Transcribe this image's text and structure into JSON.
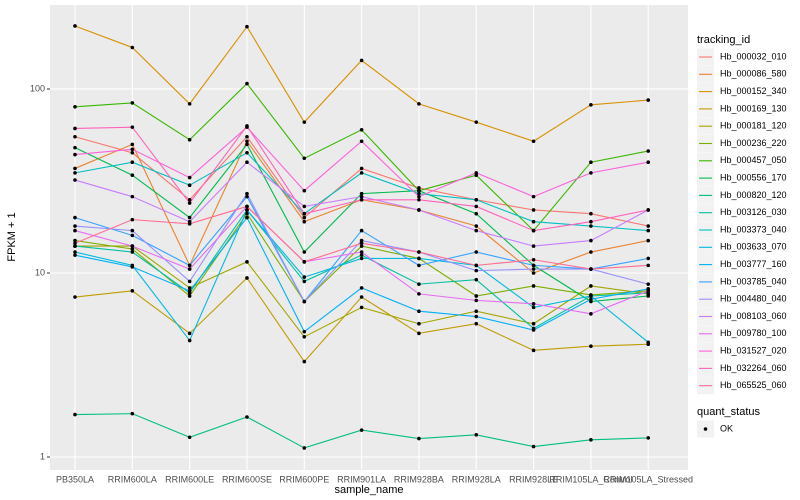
{
  "chart_data": {
    "type": "line",
    "x_label": "sample_name",
    "y_label": "FPKM + 1",
    "categories": [
      "PB350LA",
      "RRIM600LA",
      "RRIM600LE",
      "RRIM600SE",
      "RRIM600PE",
      "RRIM901LA",
      "RRIM928BA",
      "RRIM928LA",
      "RRIM928LE",
      "RRIM105LA_Control",
      "RRIM105LA_Stressed"
    ],
    "log_y": true,
    "ylim": [
      0.85,
      286
    ],
    "yticks": [
      1,
      10,
      100
    ],
    "grid": true,
    "legend_title": "tracking_id",
    "legend_position": "right",
    "shape_legend": {
      "title": "quant_status",
      "labels": [
        "OK"
      ]
    },
    "point_color": "#000000",
    "series": [
      {
        "name": "Hb_000032_010",
        "color": "#F8766D",
        "values": [
          55,
          45,
          25,
          55,
          20,
          37,
          29,
          25,
          22,
          21,
          18
        ]
      },
      {
        "name": "Hb_000086_580",
        "color": "#EA8331",
        "values": [
          37,
          50,
          11,
          52,
          19,
          25,
          22,
          18,
          10,
          13,
          15
        ]
      },
      {
        "name": "Hb_000152_340",
        "color": "#D89000",
        "values": [
          220,
          168,
          83,
          218,
          66,
          143,
          83,
          66,
          52,
          82,
          87
        ]
      },
      {
        "name": "Hb_000169_130",
        "color": "#C09B00",
        "values": [
          7.4,
          8,
          4.7,
          9.4,
          3.3,
          7.4,
          4.7,
          5.3,
          3.8,
          4,
          4.1
        ]
      },
      {
        "name": "Hb_000181_120",
        "color": "#A3A500",
        "values": [
          14,
          14,
          8.3,
          11.5,
          4.5,
          6.5,
          5.3,
          6.2,
          5.3,
          8.5,
          7.7
        ]
      },
      {
        "name": "Hb_000236_220",
        "color": "#7CAE00",
        "values": [
          15,
          13.5,
          7.5,
          21,
          7,
          14,
          12,
          7.5,
          8.5,
          7.6,
          8
        ]
      },
      {
        "name": "Hb_000457_050",
        "color": "#39B600",
        "values": [
          80,
          84,
          53,
          107,
          42,
          60,
          28,
          34,
          17,
          40,
          46
        ]
      },
      {
        "name": "Hb_000556_170",
        "color": "#00BB4E",
        "values": [
          48,
          34,
          20,
          50,
          13,
          27,
          28,
          21,
          11,
          7,
          7.5
        ]
      },
      {
        "name": "Hb_000820_120",
        "color": "#00BF7D",
        "values": [
          1.7,
          1.72,
          1.28,
          1.65,
          1.12,
          1.4,
          1.26,
          1.32,
          1.14,
          1.24,
          1.27
        ]
      },
      {
        "name": "Hb_003126_030",
        "color": "#00C1A3",
        "values": [
          14,
          13,
          7.8,
          22,
          9,
          12.5,
          8.7,
          9.2,
          5,
          7.5,
          7.8
        ]
      },
      {
        "name": "Hb_003373_040",
        "color": "#00BFC4",
        "values": [
          35,
          40,
          30,
          45,
          21,
          35,
          27,
          25,
          19,
          18,
          17
        ]
      },
      {
        "name": "Hb_003633_070",
        "color": "#00BAE0",
        "values": [
          13,
          11,
          4.3,
          22,
          9.5,
          12,
          12,
          11,
          6.5,
          7.5,
          4.2
        ]
      },
      {
        "name": "Hb_003777_160",
        "color": "#00B0F6",
        "values": [
          12.5,
          10.8,
          8,
          20,
          4.8,
          8.3,
          6.2,
          5.8,
          4.9,
          7.2,
          8.2
        ]
      },
      {
        "name": "Hb_003785_040",
        "color": "#35A2FF",
        "values": [
          20,
          16,
          11,
          26,
          7,
          17,
          11,
          13,
          11,
          10.5,
          12
        ]
      },
      {
        "name": "Hb_004480_040",
        "color": "#9590FF",
        "values": [
          18,
          17,
          9,
          27,
          7,
          15,
          13,
          10.3,
          10.5,
          10.5,
          8.7
        ]
      },
      {
        "name": "Hb_008103_060",
        "color": "#C77CFF",
        "values": [
          32,
          26,
          19,
          40,
          23,
          26,
          22,
          17,
          14,
          15,
          22
        ]
      },
      {
        "name": "Hb_009780_100",
        "color": "#E76BF3",
        "values": [
          17,
          14,
          10.5,
          23,
          11.5,
          13,
          7.7,
          7.1,
          6.8,
          6,
          8
        ]
      },
      {
        "name": "Hb_031527_020",
        "color": "#FA62DB",
        "values": [
          44,
          47,
          33,
          62,
          28,
          52,
          26,
          35,
          26,
          35,
          40
        ]
      },
      {
        "name": "Hb_032264_060",
        "color": "#FF62BC",
        "values": [
          61,
          62,
          24,
          63,
          21,
          25,
          25,
          23,
          17,
          19,
          22
        ]
      },
      {
        "name": "Hb_065525_060",
        "color": "#FF6C91",
        "values": [
          14.5,
          19.5,
          18.5,
          23,
          11.5,
          14.5,
          13,
          11,
          11.8,
          10.5,
          11
        ]
      }
    ]
  }
}
